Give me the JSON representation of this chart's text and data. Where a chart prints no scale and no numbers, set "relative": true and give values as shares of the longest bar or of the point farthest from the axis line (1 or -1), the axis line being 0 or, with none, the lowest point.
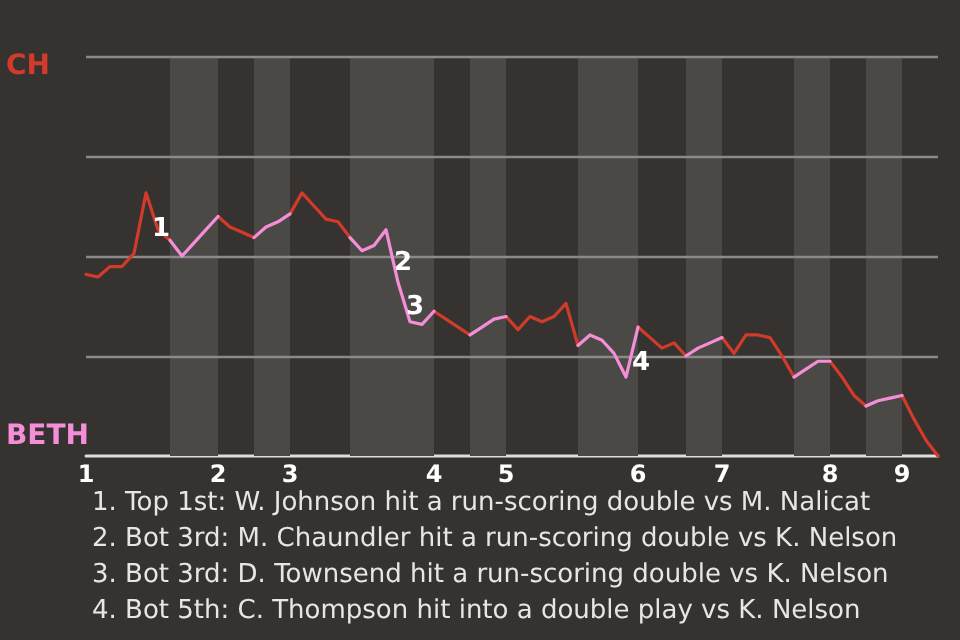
{
  "chart_data": {
    "type": "line",
    "relative": true,
    "categories": [
      "1",
      null,
      null,
      null,
      null,
      null,
      null,
      null,
      null,
      null,
      null,
      "2",
      null,
      null,
      null,
      null,
      null,
      "3",
      null,
      null,
      null,
      null,
      null,
      null,
      null,
      null,
      null,
      null,
      null,
      "4",
      null,
      null,
      null,
      null,
      null,
      "5",
      null,
      null,
      null,
      null,
      null,
      null,
      null,
      null,
      null,
      null,
      "6",
      null,
      null,
      null,
      null,
      null,
      null,
      "7",
      null,
      null,
      null,
      null,
      null,
      null,
      null,
      null,
      "8",
      null,
      null,
      null,
      null,
      null,
      "9",
      null,
      null,
      null
    ],
    "series": [
      {
        "name": "CH",
        "color": "#d23a2a",
        "values": [
          0.69,
          0.68,
          0.72,
          0.72,
          0.77,
          1,
          0.86,
          0.82,
          null,
          null,
          null,
          0.91,
          0.87,
          0.85,
          0.83,
          null,
          null,
          0.92,
          1,
          0.95,
          0.9,
          0.89,
          0.83,
          null,
          null,
          null,
          null,
          null,
          null,
          0.55,
          0.52,
          0.49,
          0.46,
          null,
          null,
          0.53,
          0.48,
          0.53,
          0.51,
          0.53,
          0.58,
          0.42,
          null,
          null,
          null,
          null,
          0.49,
          0.45,
          0.41,
          0.43,
          0.38,
          null,
          null,
          0.45,
          0.39,
          0.46,
          0.46,
          0.45,
          0.38,
          0.3,
          null,
          null,
          0.36,
          0.3,
          0.23,
          0.19,
          null,
          null,
          0.23,
          0.14,
          0.06,
          0
        ]
      },
      {
        "name": "BETH",
        "color": "#f58ed8",
        "values": [
          null,
          null,
          null,
          null,
          null,
          null,
          null,
          0.82,
          0.76,
          0.81,
          0.86,
          0.91,
          null,
          null,
          0.83,
          0.87,
          0.89,
          0.92,
          null,
          null,
          null,
          null,
          0.83,
          0.78,
          0.8,
          0.86,
          0.66,
          0.51,
          0.5,
          0.55,
          null,
          null,
          0.46,
          0.49,
          0.52,
          0.53,
          null,
          null,
          null,
          null,
          null,
          0.42,
          0.46,
          0.44,
          0.39,
          0.3,
          0.49,
          null,
          null,
          null,
          0.38,
          0.41,
          0.43,
          0.45,
          null,
          null,
          null,
          null,
          null,
          0.3,
          0.33,
          0.36,
          0.36,
          null,
          null,
          0.19,
          0.21,
          0.22,
          0.23,
          null,
          null,
          null
        ]
      }
    ],
    "legend": false,
    "marker": "none",
    "line_style": "solid",
    "ref_lines": [
      {
        "axis": "y",
        "value": 0.38,
        "color": "#8a8a8a"
      },
      {
        "axis": "y",
        "value": 0.76,
        "color": "#8a8a8a"
      },
      {
        "axis": "y",
        "value": 1.14,
        "color": "#8a8a8a"
      },
      {
        "axis": "y",
        "value": 1.52,
        "color": "#8a8a8a"
      }
    ],
    "annotations": [
      "1",
      "2",
      "3",
      "4",
      "1. Top 1st: W. Johnson hit a run-scoring double vs M. Nalicat",
      "2. Bot 3rd: M. Chaundler hit a run-scoring double vs K. Nelson",
      "3. Bot 3rd: D. Townsend hit a run-scoring double vs K. Nelson",
      "4. Bot 5th: C. Thompson hit into a double play vs K. Nelson"
    ]
  }
}
